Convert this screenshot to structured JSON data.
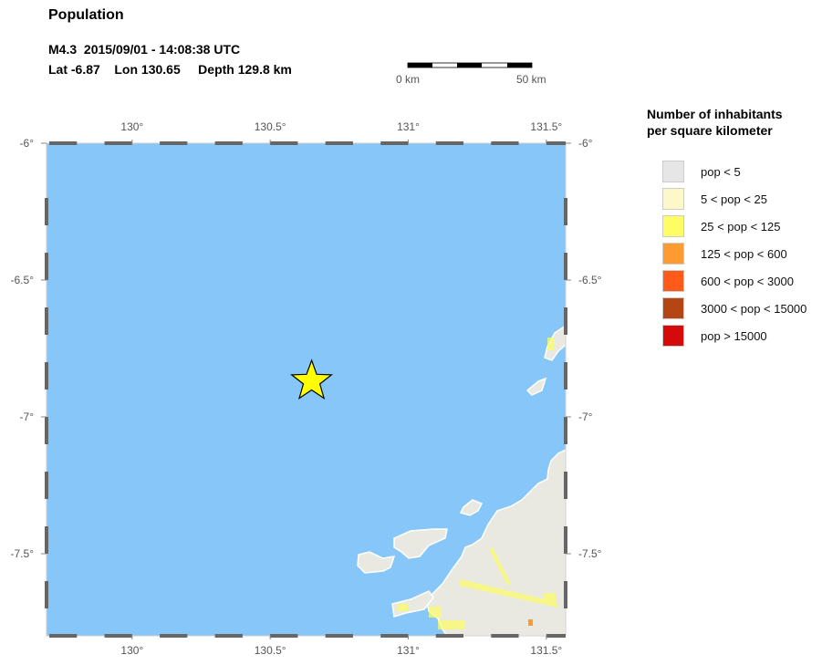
{
  "title": "Population",
  "event": {
    "line1": "M4.3  2015/09/01 - 14:08:38 UTC",
    "line2": "Lat -6.87    Lon 130.65     Depth 129.8 km",
    "magnitude": 4.3,
    "lat": -6.87,
    "lon": 130.65,
    "depth_km": 129.8
  },
  "scalebar": {
    "left_label": "0 km",
    "right_label": "50 km"
  },
  "map": {
    "lon_range": [
      129.69,
      131.57
    ],
    "lat_range": [
      -7.8,
      -6.0
    ],
    "lon_ticks": [
      {
        "v": 130,
        "label": "130°"
      },
      {
        "v": 130.5,
        "label": "130.5°"
      },
      {
        "v": 131,
        "label": "131°"
      },
      {
        "v": 131.5,
        "label": "131.5°"
      }
    ],
    "lat_ticks": [
      {
        "v": -6,
        "label": "-6°"
      },
      {
        "v": -6.5,
        "label": "-6.5°"
      },
      {
        "v": -7,
        "label": "-7°"
      },
      {
        "v": -7.5,
        "label": "-7.5°"
      }
    ],
    "water_color": "#87c6f8",
    "land_color": "#e9e9e2",
    "epicenter_color": "#ffff00",
    "epicenter_icon": "star-icon"
  },
  "legend": {
    "title_line1": "Number of inhabitants",
    "title_line2": "per square kilometer",
    "items": [
      {
        "label": "pop < 5",
        "color": "#e6e6e6"
      },
      {
        "label": "5 < pop < 25",
        "color": "#fdf8c8"
      },
      {
        "label": "25 < pop < 125",
        "color": "#fefe64"
      },
      {
        "label": "125 < pop < 600",
        "color": "#fd9a32"
      },
      {
        "label": "600 < pop < 3000",
        "color": "#fe5a19"
      },
      {
        "label": "3000 < pop < 15000",
        "color": "#b44614"
      },
      {
        "label": "pop > 15000",
        "color": "#d50b0b"
      }
    ]
  }
}
